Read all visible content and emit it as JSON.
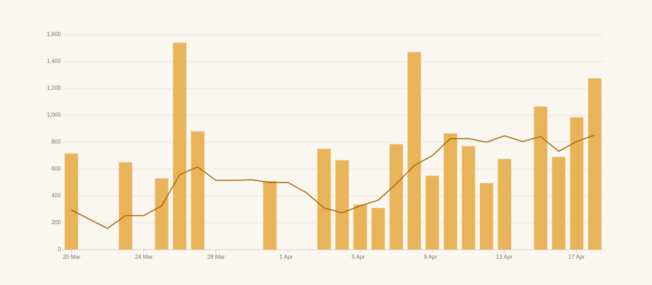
{
  "chart_data": {
    "type": "bar",
    "categories": [
      "20 Mar",
      null,
      null,
      null,
      "24 Mar",
      null,
      null,
      null,
      "28 Mar",
      null,
      null,
      null,
      "1 Apr",
      null,
      null,
      null,
      "5 Apr",
      null,
      null,
      null,
      "9 Apr",
      null,
      null,
      null,
      "13 Apr",
      null,
      null,
      null,
      "17 Apr",
      null
    ],
    "series": [
      {
        "type": "bar",
        "color": "#e9b35a",
        "values": [
          715,
          null,
          null,
          650,
          null,
          530,
          1540,
          880,
          null,
          null,
          null,
          510,
          null,
          null,
          750,
          665,
          335,
          310,
          785,
          1470,
          550,
          865,
          770,
          495,
          675,
          null,
          1065,
          690,
          985,
          1275
        ]
      },
      {
        "type": "line",
        "color": "#a86a00",
        "values": [
          295,
          226,
          158,
          253,
          253,
          326,
          558,
          616,
          516,
          516,
          520,
          500,
          500,
          426,
          310,
          274,
          326,
          368,
          490,
          626,
          700,
          826,
          826,
          800,
          847,
          805,
          842,
          732,
          805,
          853
        ]
      }
    ],
    "ylim": [
      0,
      1600
    ],
    "yticks": [
      0,
      200,
      400,
      600,
      800,
      {
        "value": 1000,
        "label": "1,000"
      },
      {
        "value": 1200,
        "label": "1,200"
      },
      {
        "value": 1400,
        "label": "1,400"
      },
      {
        "value": 1600,
        "label": "1,600"
      }
    ],
    "grid": true
  }
}
